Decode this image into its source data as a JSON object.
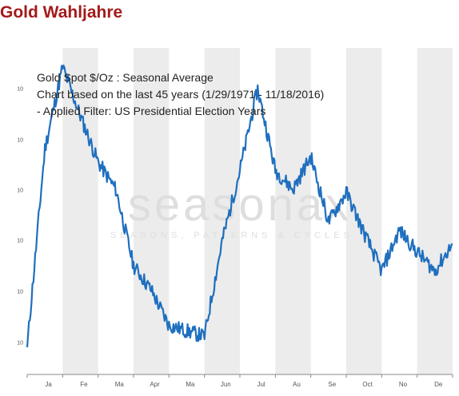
{
  "page": {
    "title": "Gold Wahljahre"
  },
  "chart_data": {
    "type": "line",
    "annotations": [
      "Gold Spot    $/Oz : Seasonal Average",
      "Chart based on the last 45 years (1/29/1971 - 11/18/2016)",
      " - Applied Filter: US Presidential Election Years"
    ],
    "watermark": {
      "main": "seasonax",
      "sub": "SEASONS, PATTERNS & CYCLES"
    },
    "x_tick_labels": [
      "Ja",
      "Fe",
      "Ma",
      "Apr",
      "Ma",
      "Jun",
      "Jul",
      "Au",
      "Se",
      "Oct",
      "No",
      "De"
    ],
    "y_tick_labels": [
      "10",
      "10",
      "10",
      "10",
      "10",
      "10"
    ],
    "grid": false,
    "series": [
      {
        "color": "#1f6fbf",
        "x": [
          0,
          0.5,
          1,
          1.5,
          2,
          2.5,
          3,
          3.5,
          4,
          4.5,
          5,
          5.5,
          6,
          6.5,
          7,
          7.5,
          8,
          8.5,
          9,
          9.5,
          10,
          10.5,
          11,
          11.5,
          12
        ],
        "y": [
          7.0,
          14.3,
          17.3,
          15.5,
          13.8,
          12.8,
          10.0,
          9.1,
          7.8,
          7.6,
          7.4,
          10.9,
          13.5,
          16.5,
          13.5,
          12.8,
          14.0,
          11.6,
          12.7,
          11.2,
          9.8,
          11.3,
          10.5,
          9.8,
          10.8
        ]
      }
    ]
  }
}
